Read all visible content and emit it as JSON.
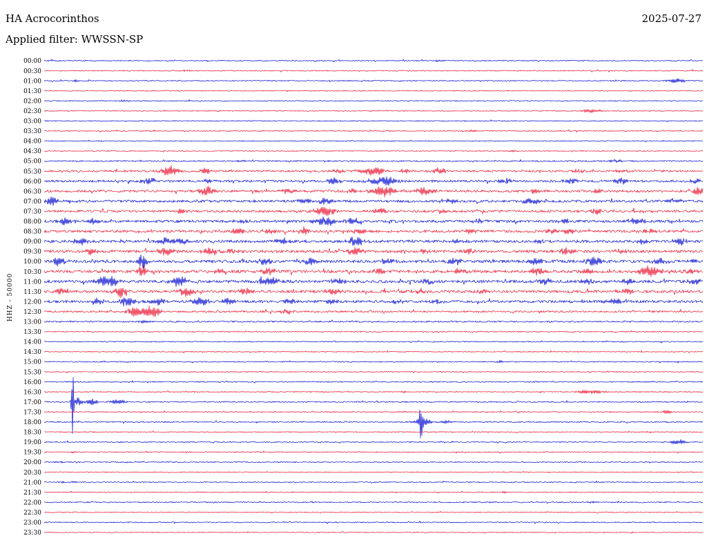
{
  "header": {
    "station": "HA Acrocorinthos",
    "date": "2025-07-27",
    "filter_label": "Applied filter: WWSSN-SP"
  },
  "axis": {
    "left_label": "HHZ - 50000"
  },
  "colors": {
    "trace_blue": "#0008cd",
    "trace_red": "#e8112d",
    "text": "#000000",
    "background": "#ffffff"
  },
  "chart_data": {
    "type": "line",
    "title": "HA Acrocorinthos",
    "subtitle": "Applied filter: WWSSN-SP",
    "date": "2025-07-27",
    "channel": "HHZ",
    "scale": 50000,
    "ylabel": "HHZ - 50000",
    "minutes_per_row": 30,
    "legend": "alternating blue/red half-hour traces, 48 lines 00:00-23:30",
    "rows": [
      {
        "time": "00:00",
        "color": "blue",
        "noise": 0.7,
        "bursts": [
          [
            0.6,
            1.6,
            4
          ]
        ]
      },
      {
        "time": "00:30",
        "color": "red",
        "noise": 0.7,
        "bursts": [
          [
            0.22,
            1.0,
            8
          ]
        ]
      },
      {
        "time": "01:00",
        "color": "blue",
        "noise": 0.7,
        "bursts": [
          [
            0.05,
            1.6,
            4
          ],
          [
            0.96,
            3.5,
            9
          ]
        ]
      },
      {
        "time": "01:30",
        "color": "red",
        "noise": 0.6,
        "bursts": []
      },
      {
        "time": "02:00",
        "color": "blue",
        "noise": 0.6,
        "bursts": [
          [
            0.12,
            1.2,
            4
          ]
        ]
      },
      {
        "time": "02:30",
        "color": "red",
        "noise": 0.6,
        "bursts": [
          [
            0.83,
            2.6,
            11
          ]
        ]
      },
      {
        "time": "03:00",
        "color": "blue",
        "noise": 0.6,
        "bursts": []
      },
      {
        "time": "03:30",
        "color": "red",
        "noise": 0.7,
        "bursts": [
          [
            0.65,
            1.5,
            5
          ]
        ]
      },
      {
        "time": "04:00",
        "color": "blue",
        "noise": 0.6,
        "bursts": []
      },
      {
        "time": "04:30",
        "color": "red",
        "noise": 0.6,
        "bursts": [
          [
            0.71,
            1.0,
            4
          ]
        ]
      },
      {
        "time": "05:00",
        "color": "blue",
        "noise": 0.9,
        "bursts": [
          [
            0.3,
            1.2,
            5
          ],
          [
            0.87,
            2.0,
            7
          ]
        ]
      },
      {
        "time": "05:30",
        "color": "red",
        "noise": 1.4,
        "bursts": [
          [
            0.19,
            8,
            9
          ],
          [
            0.245,
            4.5,
            7
          ],
          [
            0.445,
            2.5,
            6
          ],
          [
            0.5,
            6,
            13
          ],
          [
            0.545,
            3,
            6
          ],
          [
            0.6,
            4.5,
            7
          ],
          [
            0.81,
            2.5,
            6
          ],
          [
            0.875,
            2.5,
            6
          ]
        ]
      },
      {
        "time": "06:00",
        "color": "blue",
        "noise": 1.6,
        "bursts": [
          [
            0.158,
            4.5,
            7
          ],
          [
            0.25,
            2.5,
            6
          ],
          [
            0.44,
            5,
            8
          ],
          [
            0.515,
            7,
            13
          ],
          [
            0.7,
            4.5,
            7
          ],
          [
            0.8,
            3.5,
            8
          ],
          [
            0.875,
            5,
            7
          ],
          [
            0.99,
            3.5,
            6
          ]
        ]
      },
      {
        "time": "06:30",
        "color": "red",
        "noise": 1.7,
        "bursts": [
          [
            0.247,
            7,
            8
          ],
          [
            0.368,
            3.5,
            6
          ],
          [
            0.468,
            3.5,
            6
          ],
          [
            0.515,
            7.5,
            11
          ],
          [
            0.578,
            6.5,
            8
          ],
          [
            0.745,
            3.5,
            6
          ],
          [
            0.84,
            2.5,
            6
          ],
          [
            0.995,
            7,
            6
          ]
        ]
      },
      {
        "time": "07:00",
        "color": "blue",
        "noise": 1.7,
        "bursts": [
          [
            0.012,
            7,
            6
          ],
          [
            0.394,
            4,
            6
          ],
          [
            0.426,
            5,
            7
          ],
          [
            0.62,
            2.5,
            6
          ],
          [
            0.74,
            5,
            8
          ],
          [
            0.955,
            3.5,
            6
          ]
        ]
      },
      {
        "time": "07:30",
        "color": "red",
        "noise": 1.6,
        "bursts": [
          [
            0.21,
            3.5,
            6
          ],
          [
            0.425,
            7.5,
            10
          ],
          [
            0.51,
            4,
            7
          ],
          [
            0.6,
            3,
            6
          ],
          [
            0.84,
            4.5,
            6
          ],
          [
            0.9,
            2.5,
            5
          ]
        ]
      },
      {
        "time": "08:00",
        "color": "blue",
        "noise": 1.8,
        "bursts": [
          [
            0.032,
            5,
            7
          ],
          [
            0.075,
            4.5,
            6
          ],
          [
            0.3,
            3,
            6
          ],
          [
            0.425,
            8,
            11
          ],
          [
            0.468,
            5,
            7
          ],
          [
            0.66,
            3,
            6
          ],
          [
            0.79,
            3,
            6
          ],
          [
            0.9,
            5,
            8
          ]
        ]
      },
      {
        "time": "08:30",
        "color": "red",
        "noise": 1.8,
        "bursts": [
          [
            0.295,
            4.5,
            7
          ],
          [
            0.342,
            3.5,
            6
          ],
          [
            0.394,
            4.5,
            6
          ],
          [
            0.478,
            4.5,
            7
          ],
          [
            0.645,
            3.5,
            6
          ],
          [
            0.77,
            3.5,
            6
          ],
          [
            0.798,
            4.5,
            6
          ],
          [
            0.92,
            3,
            6
          ]
        ]
      },
      {
        "time": "09:00",
        "color": "blue",
        "noise": 1.9,
        "bursts": [
          [
            0.055,
            4.5,
            8
          ],
          [
            0.185,
            5,
            7
          ],
          [
            0.21,
            5,
            6
          ],
          [
            0.363,
            5,
            7
          ],
          [
            0.473,
            6.5,
            9
          ],
          [
            0.625,
            3.5,
            6
          ],
          [
            0.75,
            3,
            6
          ],
          [
            0.908,
            3.5,
            6
          ],
          [
            0.965,
            5,
            7
          ]
        ]
      },
      {
        "time": "09:30",
        "color": "red",
        "noise": 1.9,
        "bursts": [
          [
            0.07,
            4.5,
            7
          ],
          [
            0.185,
            6,
            8
          ],
          [
            0.253,
            6,
            8
          ],
          [
            0.285,
            4,
            6
          ],
          [
            0.473,
            6.5,
            8
          ],
          [
            0.578,
            3.5,
            6
          ],
          [
            0.645,
            3.5,
            6
          ],
          [
            0.792,
            4.5,
            7
          ],
          [
            0.875,
            3,
            6
          ]
        ]
      },
      {
        "time": "10:00",
        "color": "blue",
        "noise": 2.0,
        "bursts": [
          [
            0.022,
            6,
            7
          ],
          [
            0.148,
            10,
            5
          ],
          [
            0.336,
            4.5,
            7
          ],
          [
            0.405,
            5,
            7
          ],
          [
            0.52,
            4.5,
            7
          ],
          [
            0.625,
            4.5,
            7
          ],
          [
            0.745,
            5,
            8
          ],
          [
            0.835,
            6,
            8
          ],
          [
            0.935,
            4,
            8
          ],
          [
            0.985,
            3.5,
            5
          ]
        ]
      },
      {
        "time": "10:30",
        "color": "red",
        "noise": 2.0,
        "bursts": [
          [
            0.148,
            9,
            5
          ],
          [
            0.268,
            4.5,
            7
          ],
          [
            0.342,
            5.5,
            8
          ],
          [
            0.51,
            4.5,
            7
          ],
          [
            0.63,
            4.5,
            7
          ],
          [
            0.75,
            5,
            8
          ],
          [
            0.824,
            5.5,
            7
          ],
          [
            0.918,
            7.5,
            11
          ],
          [
            0.98,
            4,
            6
          ]
        ]
      },
      {
        "time": "11:00",
        "color": "blue",
        "noise": 2.0,
        "bursts": [
          [
            0.09,
            7,
            8
          ],
          [
            0.106,
            6,
            5
          ],
          [
            0.205,
            7.5,
            8
          ],
          [
            0.342,
            7,
            9
          ],
          [
            0.447,
            5,
            7
          ],
          [
            0.583,
            3.5,
            6
          ],
          [
            0.76,
            4.5,
            6
          ],
          [
            0.824,
            4.5,
            6
          ],
          [
            0.887,
            4.5,
            6
          ],
          [
            0.987,
            5,
            6
          ]
        ]
      },
      {
        "time": "11:30",
        "color": "red",
        "noise": 1.9,
        "bursts": [
          [
            0.027,
            5,
            6
          ],
          [
            0.116,
            8.5,
            6
          ],
          [
            0.216,
            7,
            8
          ],
          [
            0.305,
            5,
            7
          ],
          [
            0.436,
            5,
            7
          ],
          [
            0.572,
            3.5,
            6
          ],
          [
            0.667,
            3,
            6
          ],
          [
            0.887,
            4.5,
            7
          ]
        ]
      },
      {
        "time": "12:00",
        "color": "blue",
        "noise": 1.8,
        "bursts": [
          [
            0.08,
            4.5,
            6
          ],
          [
            0.127,
            7.5,
            8
          ],
          [
            0.174,
            5,
            7
          ],
          [
            0.237,
            6,
            8
          ],
          [
            0.279,
            4.5,
            6
          ],
          [
            0.373,
            4.5,
            6
          ],
          [
            0.436,
            4.5,
            6
          ],
          [
            0.536,
            3.5,
            6
          ],
          [
            0.598,
            3.5,
            6
          ],
          [
            0.866,
            5,
            8
          ]
        ]
      },
      {
        "time": "12:30",
        "color": "red",
        "noise": 1.3,
        "bursts": [
          [
            0.137,
            8,
            7
          ],
          [
            0.164,
            10,
            9
          ],
          [
            0.368,
            4,
            6
          ]
        ]
      },
      {
        "time": "13:00",
        "color": "blue",
        "noise": 1.0,
        "bursts": [
          [
            0.153,
            2,
            5
          ]
        ]
      },
      {
        "time": "13:30",
        "color": "red",
        "noise": 0.8,
        "bursts": []
      },
      {
        "time": "14:00",
        "color": "blue",
        "noise": 0.7,
        "bursts": []
      },
      {
        "time": "14:30",
        "color": "red",
        "noise": 0.7,
        "bursts": []
      },
      {
        "time": "15:00",
        "color": "blue",
        "noise": 0.7,
        "bursts": [
          [
            0.693,
            1.5,
            4
          ]
        ]
      },
      {
        "time": "15:30",
        "color": "red",
        "noise": 0.7,
        "bursts": []
      },
      {
        "time": "16:00",
        "color": "blue",
        "noise": 0.7,
        "bursts": [
          [
            0.043,
            1.2,
            3
          ]
        ]
      },
      {
        "time": "16:30",
        "color": "red",
        "noise": 0.7,
        "bursts": [
          [
            0.546,
            1.5,
            3
          ],
          [
            0.83,
            3,
            13
          ]
        ]
      },
      {
        "time": "17:00",
        "color": "blue",
        "noise": 0.8,
        "bursts": [
          [
            0.043,
            50,
            1.2
          ],
          [
            0.05,
            6,
            5
          ],
          [
            0.072,
            4.5,
            6
          ],
          [
            0.111,
            4.5,
            7
          ]
        ]
      },
      {
        "time": "17:30",
        "color": "red",
        "noise": 0.7,
        "bursts": [
          [
            0.546,
            1.2,
            3
          ],
          [
            0.945,
            2.5,
            5
          ]
        ]
      },
      {
        "time": "18:00",
        "color": "blue",
        "noise": 0.8,
        "bursts": [
          [
            0.572,
            24,
            1.6
          ],
          [
            0.575,
            6,
            8
          ],
          [
            0.61,
            2.5,
            5
          ]
        ]
      },
      {
        "time": "18:30",
        "color": "red",
        "noise": 0.7,
        "bursts": []
      },
      {
        "time": "19:00",
        "color": "blue",
        "noise": 0.7,
        "bursts": [
          [
            0.963,
            3.5,
            8
          ]
        ]
      },
      {
        "time": "19:30",
        "color": "red",
        "noise": 0.7,
        "bursts": [
          [
            0.043,
            2,
            2
          ]
        ]
      },
      {
        "time": "20:00",
        "color": "blue",
        "noise": 0.7,
        "bursts": [
          [
            0.022,
            1.2,
            3
          ]
        ]
      },
      {
        "time": "20:30",
        "color": "red",
        "noise": 0.6,
        "bursts": []
      },
      {
        "time": "21:00",
        "color": "blue",
        "noise": 0.7,
        "bursts": [
          [
            0.027,
            1.6,
            3
          ],
          [
            0.045,
            1.2,
            3
          ]
        ]
      },
      {
        "time": "21:30",
        "color": "red",
        "noise": 0.6,
        "bursts": [
          [
            0.698,
            1.5,
            3
          ]
        ]
      },
      {
        "time": "22:00",
        "color": "blue",
        "noise": 0.8,
        "bursts": [
          [
            0.83,
            1.2,
            4
          ]
        ]
      },
      {
        "time": "22:30",
        "color": "red",
        "noise": 0.6,
        "bursts": []
      },
      {
        "time": "23:00",
        "color": "blue",
        "noise": 0.7,
        "bursts": []
      },
      {
        "time": "23:30",
        "color": "red",
        "noise": 0.6,
        "bursts": []
      }
    ]
  }
}
